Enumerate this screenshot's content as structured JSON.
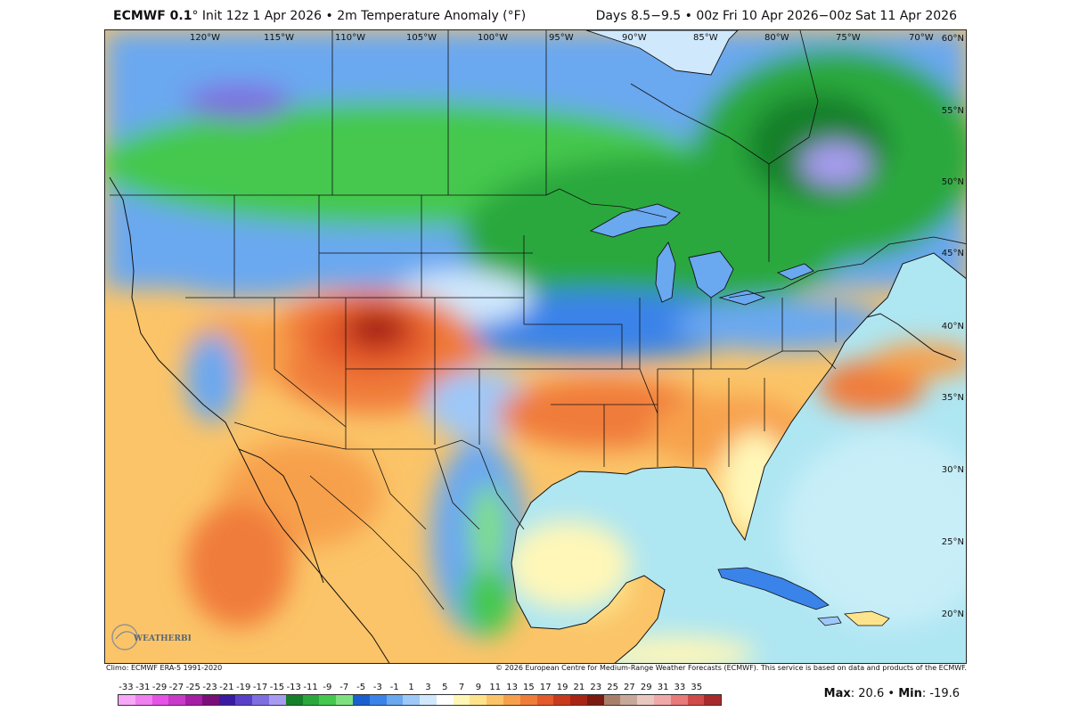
{
  "header": {
    "model": "ECMWF 0.1",
    "degree": "°",
    "init_text": "Init 12z 1 Apr 2026",
    "bullet": "•",
    "product": "2m Temperature Anomaly (°F)",
    "valid_text": "Days 8.5−9.5 • 00z Fri 10 Apr 2026−00z Sat 11 Apr 2026"
  },
  "map": {
    "lon_labels": [
      "120°W",
      "115°W",
      "110°W",
      "105°W",
      "100°W",
      "95°W",
      "90°W",
      "85°W",
      "80°W",
      "75°W",
      "70°W"
    ],
    "lat_labels": [
      "60°N",
      "55°N",
      "50°N",
      "45°N",
      "40°N",
      "35°N",
      "30°N",
      "25°N",
      "20°N"
    ],
    "logo_text": "WEATHERBELL",
    "ocean_color": "#aee6f2",
    "land_edge_color": "#111111"
  },
  "footer": {
    "climo": "Climo: ECMWF ERA-5 1991-2020",
    "copyright": "© 2026 European Centre for Medium-Range Weather Forecasts (ECMWF). This service is based on data and products of the ECMWF.",
    "max_label": "Max",
    "max_value": "20.6",
    "sep": "•",
    "min_label": "Min",
    "min_value": "-19.6"
  },
  "colorbar": {
    "labels": [
      "-33",
      "-31",
      "-29",
      "-27",
      "-25",
      "-23",
      "-21",
      "-19",
      "-17",
      "-15",
      "-13",
      "-11",
      "-9",
      "-7",
      "-5",
      "-3",
      "-1",
      "1",
      "3",
      "5",
      "7",
      "9",
      "11",
      "13",
      "15",
      "17",
      "19",
      "21",
      "23",
      "25",
      "27",
      "29",
      "31",
      "33",
      "35"
    ],
    "colors": [
      "#f7a8f7",
      "#f07ff0",
      "#e552e5",
      "#c93ac9",
      "#a51ea5",
      "#7a0f7a",
      "#3a1aa0",
      "#5a3fc8",
      "#7f6ee0",
      "#a89cf0",
      "#14802a",
      "#2aa83c",
      "#44c84e",
      "#7fe07f",
      "#1a5fd0",
      "#3a83e8",
      "#6aa8f0",
      "#9ec8f8",
      "#cfe8fc",
      "#ffffff",
      "#fff7b8",
      "#fde48c",
      "#fbc468",
      "#f7a04c",
      "#f07c3a",
      "#e45a2a",
      "#c83a1c",
      "#a82414",
      "#7a1a10",
      "#a8806a",
      "#c8a898",
      "#e8c8c0",
      "#f0a8a8",
      "#e87a7a",
      "#d04a4a",
      "#a82a2a"
    ]
  }
}
